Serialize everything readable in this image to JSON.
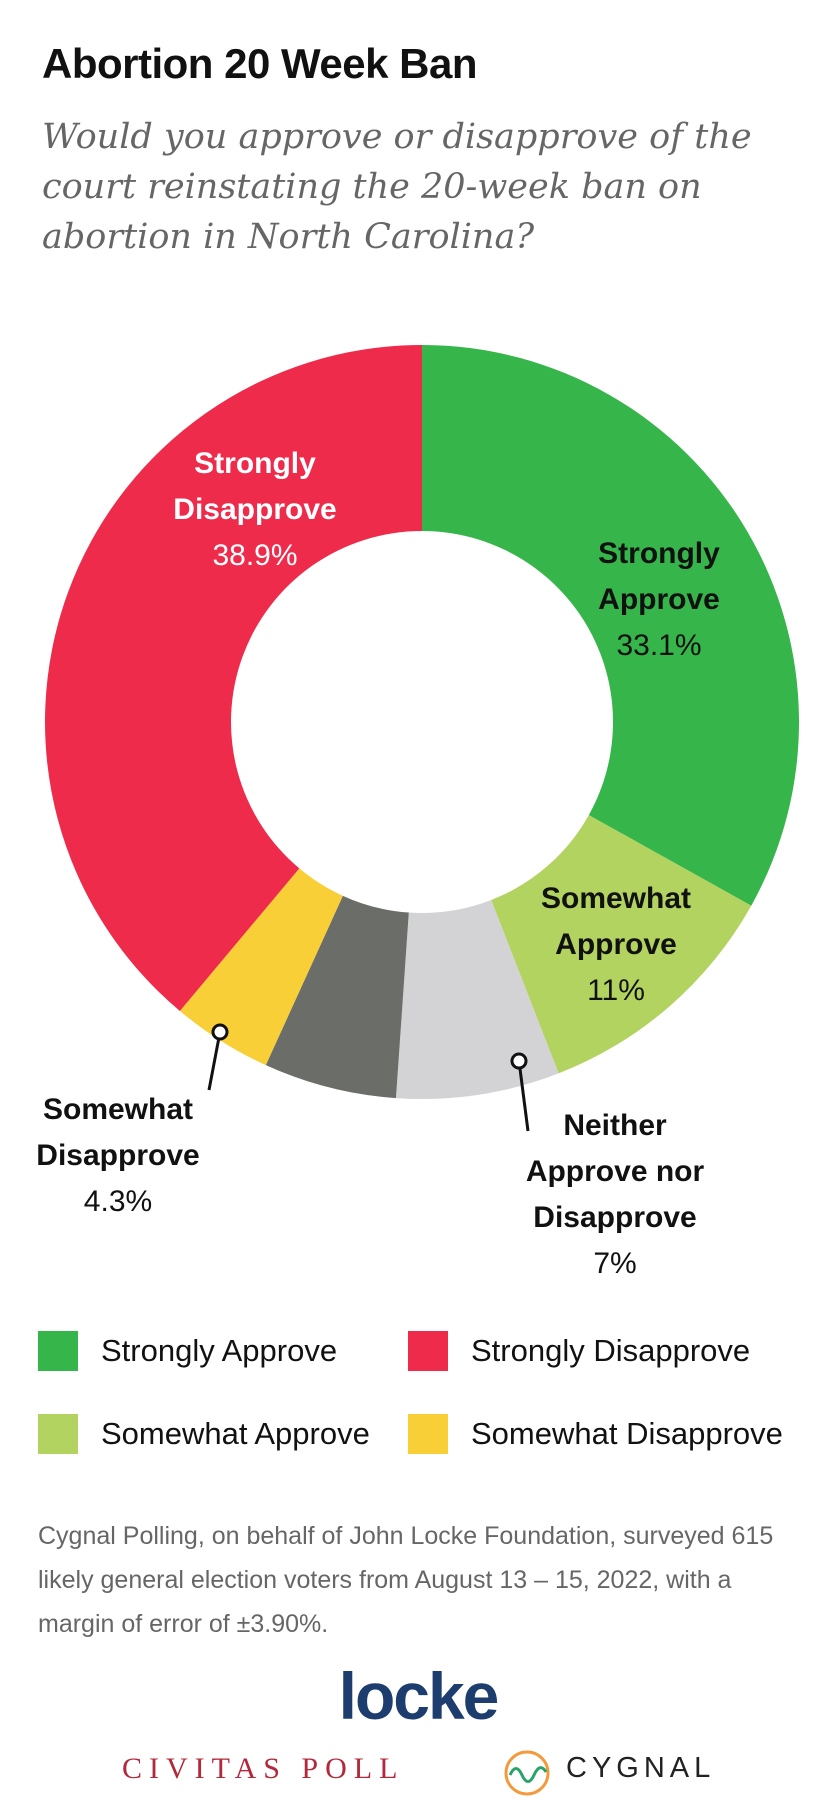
{
  "chart_data": {
    "type": "donut",
    "title": "Abortion 20 Week Ban",
    "subtitle": "Would you approve or disapprove of the court reinstating the 20-week ban on abortion in North Carolina?",
    "categories": [
      "Strongly Approve",
      "Somewhat Approve",
      "Neither Approve nor Disapprove",
      null,
      "Somewhat Disapprove",
      "Strongly Disapprove"
    ],
    "values": [
      33.1,
      11,
      7,
      5.7,
      4.3,
      38.9
    ],
    "value_labels": [
      "33.1%",
      "11%",
      "7%",
      null,
      "4.3%",
      "38.9%"
    ],
    "colors": [
      "#36b54a",
      "#b2d35f",
      "#d3d3d5",
      "#6b6e68",
      "#f8cf37",
      "#ef2b4b"
    ],
    "legend": [
      "Strongly Approve",
      "Strongly Disapprove",
      "Somewhat Approve",
      "Somewhat Disapprove"
    ]
  },
  "source": "Cygnal Polling, on behalf of John Locke Foundation, surveyed 615 likely general election voters from August 13 – 15, 2022, with a margin of error of ±3.90%.",
  "logos": {
    "main": "locke",
    "left": "CIVITAS POLL",
    "right": "CYGNAL"
  }
}
